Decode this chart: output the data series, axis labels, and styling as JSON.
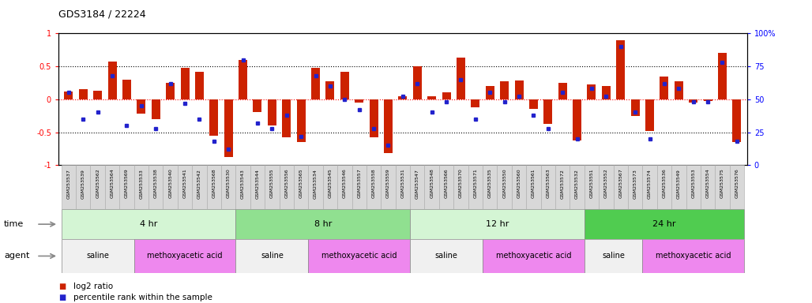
{
  "title": "GDS3184 / 22224",
  "samples": [
    "GSM253537",
    "GSM253539",
    "GSM253562",
    "GSM253564",
    "GSM253569",
    "GSM253533",
    "GSM253538",
    "GSM253540",
    "GSM253541",
    "GSM253542",
    "GSM253568",
    "GSM253530",
    "GSM253543",
    "GSM253544",
    "GSM253555",
    "GSM253556",
    "GSM253565",
    "GSM253534",
    "GSM253545",
    "GSM253546",
    "GSM253557",
    "GSM253558",
    "GSM253559",
    "GSM253531",
    "GSM253547",
    "GSM253548",
    "GSM253566",
    "GSM253570",
    "GSM253571",
    "GSM253535",
    "GSM253550",
    "GSM253560",
    "GSM253561",
    "GSM253563",
    "GSM253572",
    "GSM253532",
    "GSM253551",
    "GSM253552",
    "GSM253567",
    "GSM253573",
    "GSM253574",
    "GSM253536",
    "GSM253549",
    "GSM253553",
    "GSM253554",
    "GSM253575",
    "GSM253576"
  ],
  "log2_ratio": [
    0.12,
    0.15,
    0.13,
    0.57,
    0.3,
    -0.22,
    -0.3,
    0.25,
    0.48,
    0.42,
    -0.55,
    -0.88,
    0.6,
    -0.2,
    -0.4,
    -0.58,
    -0.65,
    0.48,
    0.27,
    0.42,
    -0.05,
    -0.58,
    -0.82,
    0.05,
    0.5,
    0.05,
    0.1,
    0.63,
    -0.12,
    0.2,
    0.27,
    0.28,
    -0.15,
    -0.38,
    0.25,
    -0.62,
    0.22,
    0.2,
    0.9,
    -0.25,
    -0.48,
    0.35,
    0.27,
    -0.05,
    -0.03,
    0.7,
    -0.65
  ],
  "percentile": [
    55,
    35,
    40,
    68,
    30,
    45,
    28,
    62,
    47,
    35,
    18,
    12,
    80,
    32,
    28,
    38,
    22,
    68,
    60,
    50,
    42,
    28,
    15,
    52,
    62,
    40,
    48,
    65,
    35,
    55,
    48,
    52,
    38,
    28,
    55,
    20,
    58,
    52,
    90,
    40,
    20,
    62,
    58,
    48,
    48,
    78,
    18
  ],
  "time_groups": [
    {
      "label": "4 hr",
      "start": 0,
      "end": 12,
      "color": "#d4f5d4"
    },
    {
      "label": "8 hr",
      "start": 12,
      "end": 24,
      "color": "#90e090"
    },
    {
      "label": "12 hr",
      "start": 24,
      "end": 36,
      "color": "#d4f5d4"
    },
    {
      "label": "24 hr",
      "start": 36,
      "end": 47,
      "color": "#50cc50"
    }
  ],
  "agent_groups": [
    {
      "label": "saline",
      "start": 0,
      "end": 5,
      "color": "#f0f0f0"
    },
    {
      "label": "methoxyacetic acid",
      "start": 5,
      "end": 12,
      "color": "#ee88ee"
    },
    {
      "label": "saline",
      "start": 12,
      "end": 17,
      "color": "#f0f0f0"
    },
    {
      "label": "methoxyacetic acid",
      "start": 17,
      "end": 24,
      "color": "#ee88ee"
    },
    {
      "label": "saline",
      "start": 24,
      "end": 29,
      "color": "#f0f0f0"
    },
    {
      "label": "methoxyacetic acid",
      "start": 29,
      "end": 36,
      "color": "#ee88ee"
    },
    {
      "label": "saline",
      "start": 36,
      "end": 40,
      "color": "#f0f0f0"
    },
    {
      "label": "methoxyacetic acid",
      "start": 40,
      "end": 47,
      "color": "#ee88ee"
    }
  ],
  "bar_color": "#cc2200",
  "dot_color": "#2222cc",
  "ylim_left": [
    -1,
    1
  ],
  "ylim_right": [
    0,
    100
  ],
  "legend_red": "log2 ratio",
  "legend_blue": "percentile rank within the sample",
  "fig_width": 10.28,
  "fig_height": 3.84,
  "dpi": 100
}
